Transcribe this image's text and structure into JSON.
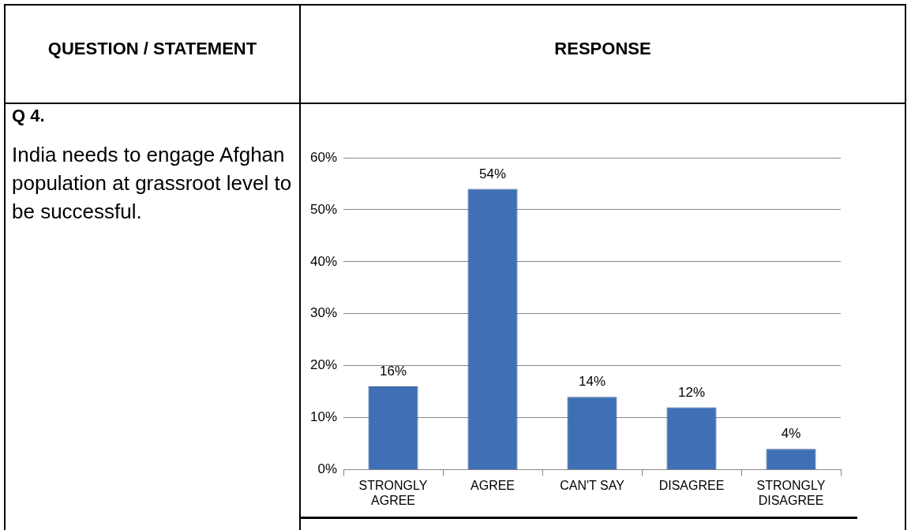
{
  "chart_data": {
    "type": "bar",
    "annotations": [
      "QUESTION / STATEMENT",
      "RESPONSE",
      "Q 4.",
      "India needs to engage Afghan population at grassroot level to be successful."
    ],
    "categories": [
      "STRONGLY AGREE",
      "AGREE",
      "CAN'T SAY",
      "DISAGREE",
      "STRONGLY DISAGREE"
    ],
    "values": [
      16,
      54,
      14,
      12,
      4
    ],
    "value_labels": [
      "16%",
      "54%",
      "14%",
      "12%",
      "4%"
    ],
    "color": "#3f6fb5",
    "ylim": [
      0,
      60
    ],
    "yticks": [
      {
        "value": 0,
        "label": "0%"
      },
      {
        "value": 10,
        "label": "10%"
      },
      {
        "value": 20,
        "label": "20%"
      },
      {
        "value": 30,
        "label": "30%"
      },
      {
        "value": 40,
        "label": "40%"
      },
      {
        "value": 50,
        "label": "50%"
      },
      {
        "value": 60,
        "label": "60%"
      }
    ],
    "grid": "y"
  }
}
